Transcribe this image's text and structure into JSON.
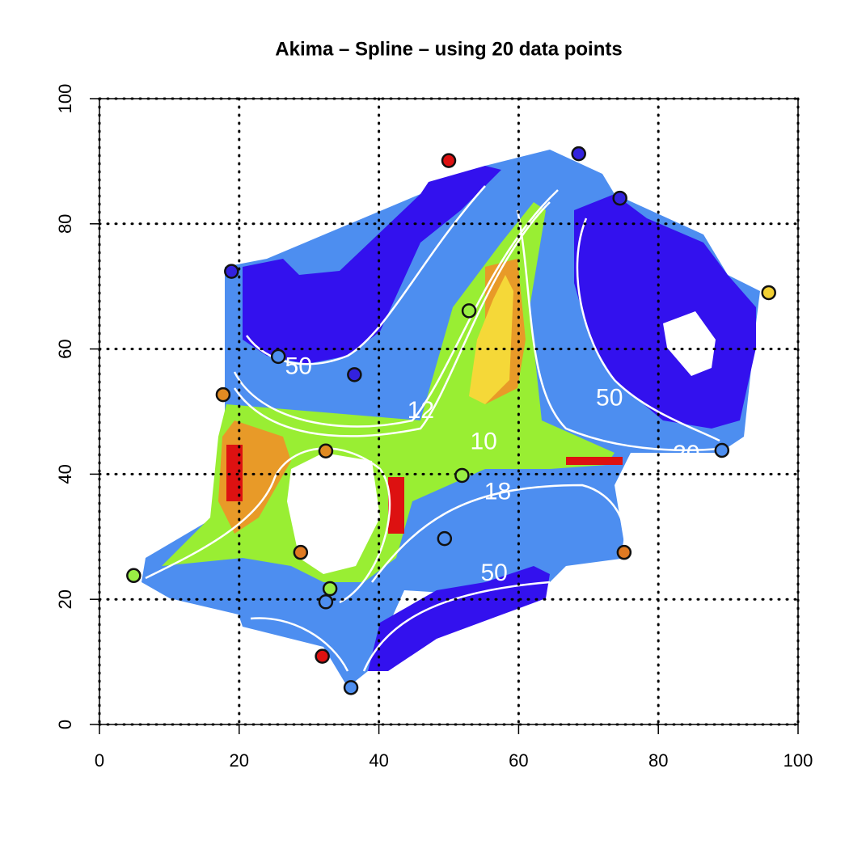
{
  "chart_data": {
    "type": "scatter",
    "title": "Akima – Spline – using  20  data points",
    "x": [
      50.0,
      68.6,
      74.5,
      18.9,
      95.8,
      52.9,
      25.6,
      36.5,
      17.7,
      32.4,
      51.9,
      89.1,
      49.4,
      28.8,
      75.1,
      4.9,
      33.0,
      32.4,
      31.9,
      36.0
    ],
    "values": [
      90.1,
      91.2,
      84.1,
      72.4,
      69.0,
      66.1,
      58.8,
      55.9,
      52.7,
      43.7,
      39.8,
      43.8,
      29.7,
      27.5,
      27.5,
      23.8,
      21.7,
      19.6,
      10.9,
      5.9
    ],
    "colors": [
      "#dd1111",
      "#3322dd",
      "#3322dd",
      "#3322dd",
      "#f2d033",
      "#99ee44",
      "#4d8ef0",
      "#3322dd",
      "#e08a22",
      "#e08a22",
      "#99ee44",
      "#4d8ef0",
      "#4d8ef0",
      "#e07a22",
      "#e07a22",
      "#99ee44",
      "#99ee44",
      "#4d8ef0",
      "#dd1111",
      "#4d8ef0"
    ],
    "xlim": [
      0,
      100
    ],
    "ylim": [
      0,
      100
    ],
    "xticks": [
      0,
      20,
      40,
      60,
      80,
      100
    ],
    "yticks": [
      0,
      20,
      40,
      60,
      80,
      100
    ],
    "grid": true,
    "annotations": [
      {
        "text": "50",
        "x": 28.5,
        "y": 57
      },
      {
        "text": "50",
        "x": 73,
        "y": 52
      },
      {
        "text": "20",
        "x": 84,
        "y": 43
      },
      {
        "text": "10",
        "x": 55,
        "y": 45
      },
      {
        "text": "18",
        "x": 57,
        "y": 37
      },
      {
        "text": "12",
        "x": 46,
        "y": 50
      },
      {
        "text": "50",
        "x": 56.5,
        "y": 24
      }
    ]
  }
}
